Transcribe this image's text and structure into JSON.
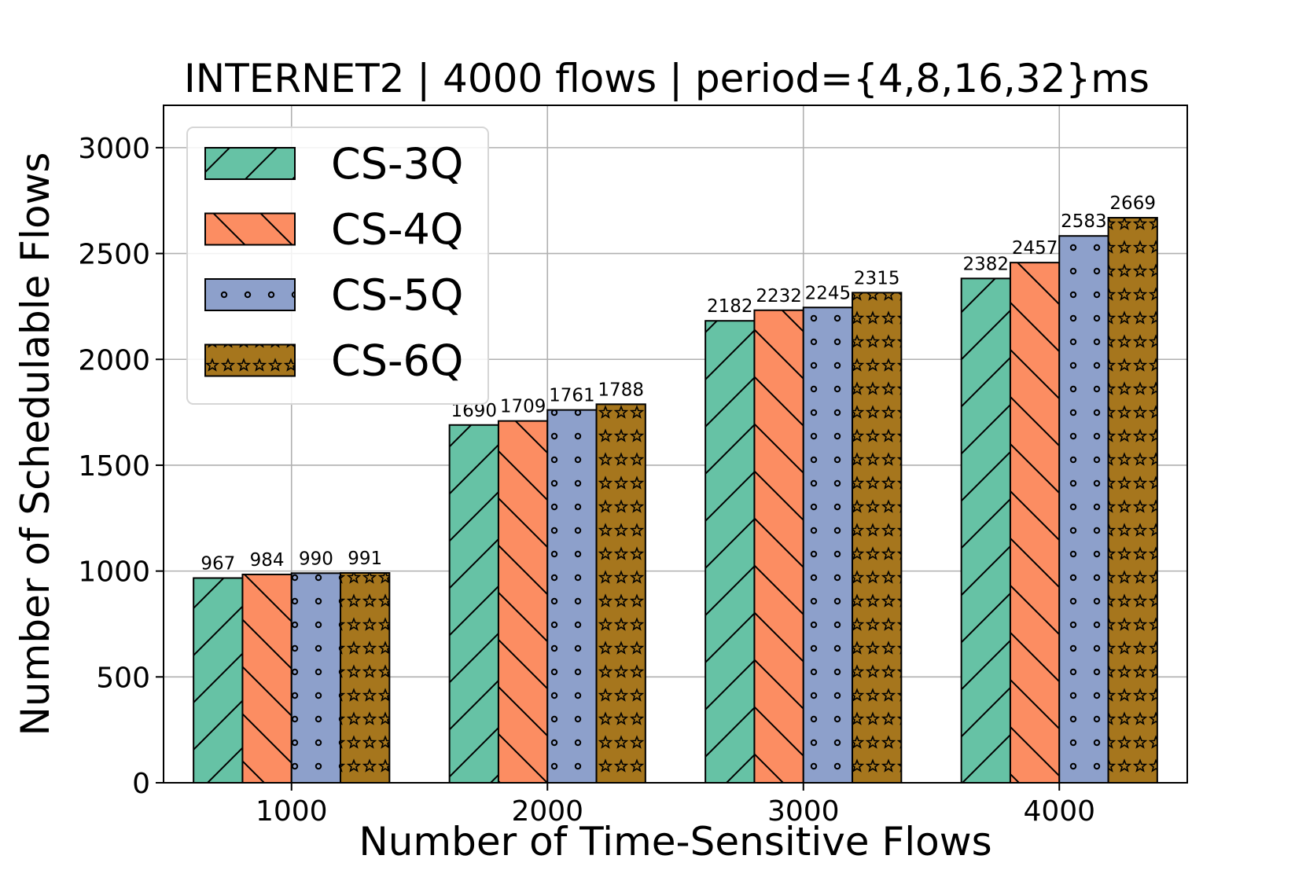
{
  "chart_data": {
    "type": "bar",
    "title": "INTERNET2 | 4000 flows | period={4,8,16,32}ms",
    "xlabel": "Number of Time-Sensitive Flows",
    "ylabel": "Number of Schedulable Flows",
    "categories": [
      "1000",
      "2000",
      "3000",
      "4000"
    ],
    "ylim": [
      0,
      3200
    ],
    "yticks": [
      0,
      500,
      1000,
      1500,
      2000,
      2500,
      3000
    ],
    "ytick_labels": [
      "0",
      "500",
      "1000",
      "1500",
      "2000",
      "2500",
      "3000"
    ],
    "grid": true,
    "legend_position": "upper-left",
    "series": [
      {
        "name": "CS-3Q",
        "values": [
          967,
          1690,
          2182,
          2382
        ],
        "color": "#66c2a5",
        "pattern": "slash"
      },
      {
        "name": "CS-4Q",
        "values": [
          984,
          1709,
          2232,
          2457
        ],
        "color": "#fc8d62",
        "pattern": "backslash"
      },
      {
        "name": "CS-5Q",
        "values": [
          990,
          1761,
          2245,
          2583
        ],
        "color": "#8da0cb",
        "pattern": "dots"
      },
      {
        "name": "CS-6Q",
        "values": [
          991,
          1788,
          2315,
          2669
        ],
        "color": "#a6761d",
        "pattern": "stars"
      }
    ]
  }
}
